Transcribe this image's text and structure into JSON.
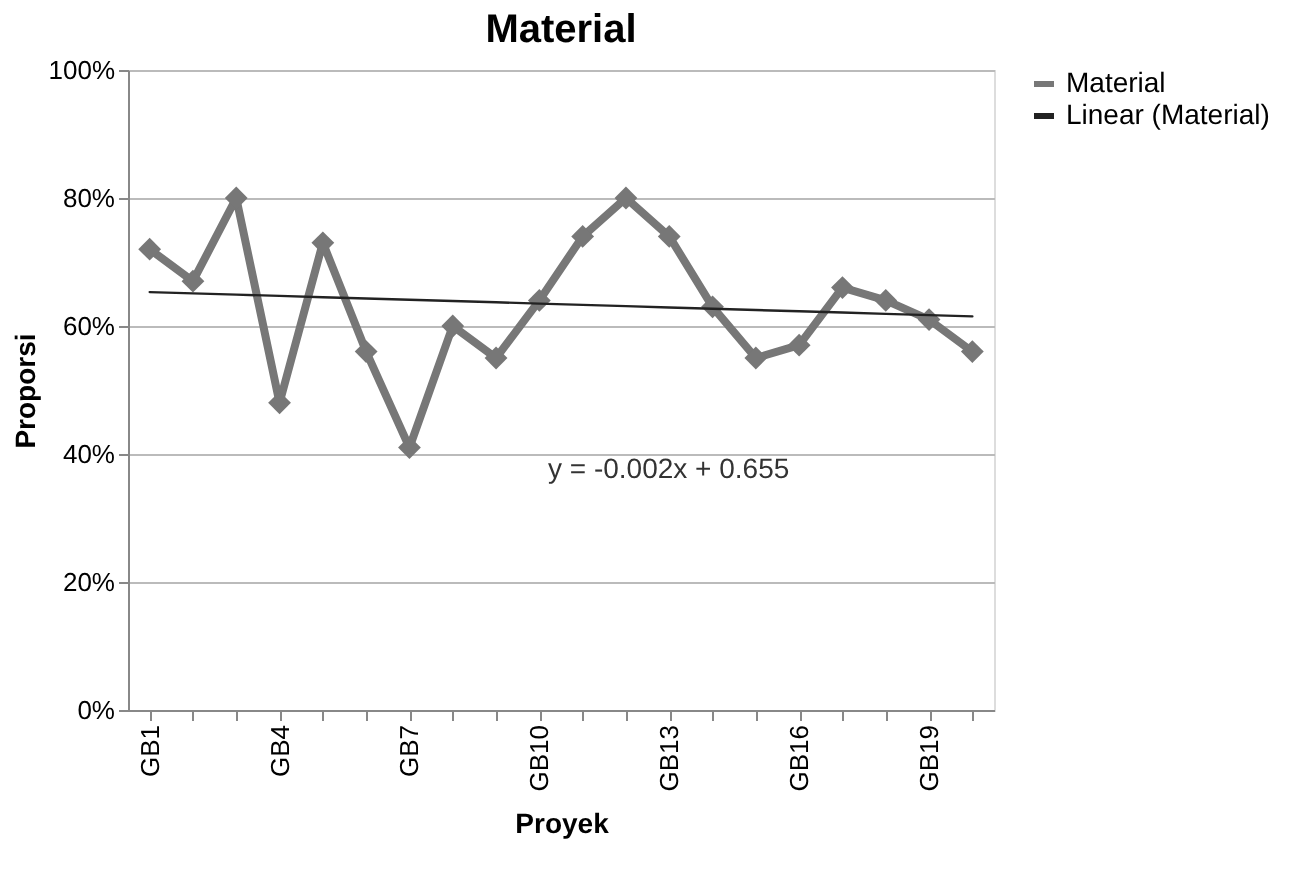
{
  "chart_data": {
    "type": "line",
    "title": "Material",
    "xlabel": "Proyek",
    "ylabel": "Proporsi",
    "categories": [
      "GB1",
      null,
      null,
      "GB4",
      null,
      null,
      "GB7",
      null,
      null,
      "GB10",
      null,
      null,
      "GB13",
      null,
      null,
      "GB16",
      null,
      null,
      "GB19",
      null
    ],
    "series": [
      {
        "name": "Material",
        "color": "#777777",
        "marker": "diamond",
        "values": [
          0.72,
          0.67,
          0.8,
          0.48,
          0.73,
          0.56,
          0.41,
          0.6,
          0.55,
          0.64,
          0.74,
          0.8,
          0.74,
          0.63,
          0.55,
          0.57,
          0.66,
          0.64,
          0.61,
          0.56
        ]
      },
      {
        "name": "Linear (Material)",
        "color": "#222222",
        "marker": "none",
        "values": [
          0.653,
          0.651,
          0.649,
          0.647,
          0.645,
          0.643,
          0.641,
          0.639,
          0.637,
          0.635,
          0.633,
          0.631,
          0.629,
          0.627,
          0.625,
          0.623,
          0.621,
          0.619,
          0.617,
          0.615
        ]
      }
    ],
    "ylim": [
      0,
      1
    ],
    "yticks": [
      {
        "value": 0,
        "label": "0%"
      },
      {
        "value": 0.2,
        "label": "20%"
      },
      {
        "value": 0.4,
        "label": "40%"
      },
      {
        "value": 0.6,
        "label": "60%"
      },
      {
        "value": 0.8,
        "label": "80%"
      },
      {
        "value": 1,
        "label": "100%"
      }
    ],
    "annotations": [
      "y = -0.002x + 0.655"
    ],
    "grid": "y",
    "legend": "right"
  }
}
